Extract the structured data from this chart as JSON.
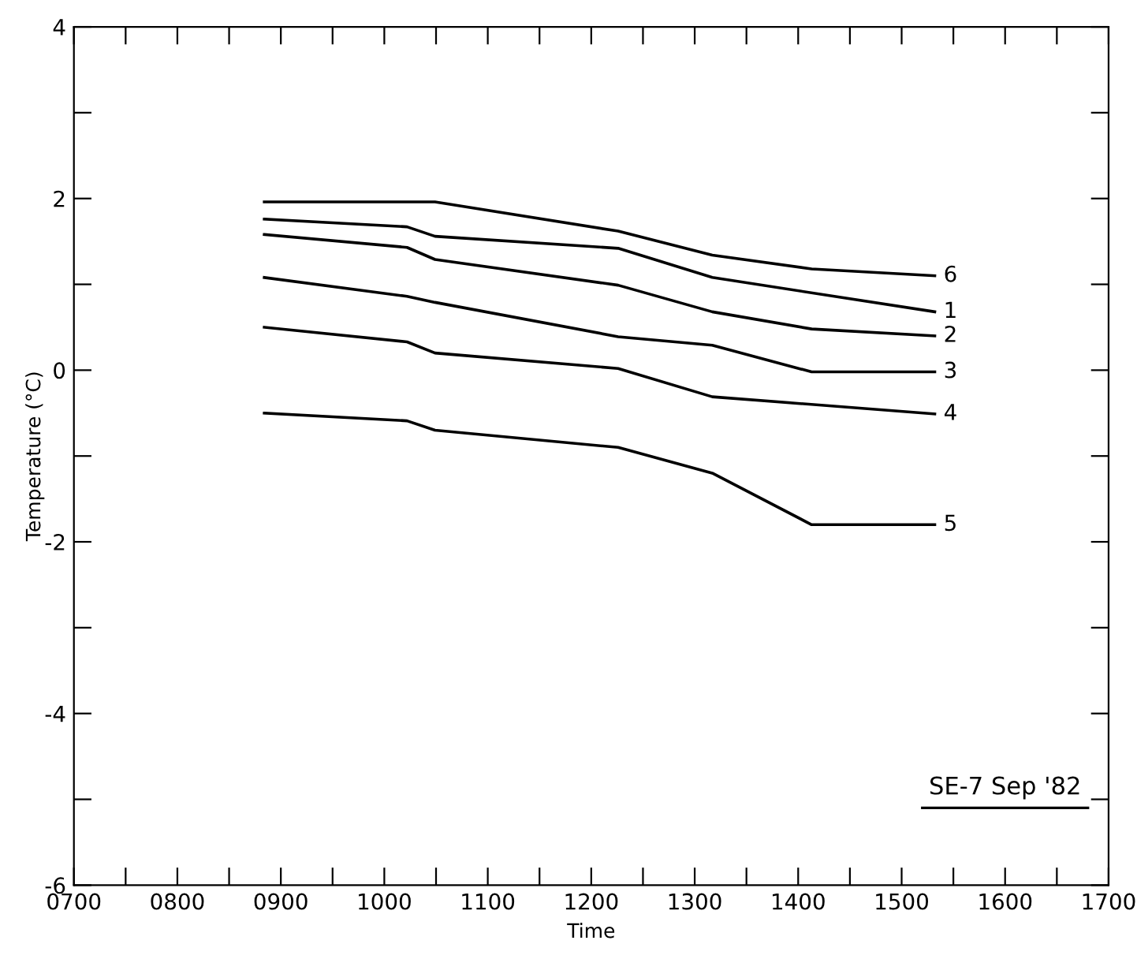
{
  "chart_data": {
    "type": "line",
    "xlabel": "Time",
    "ylabel": "Temperature (°C)",
    "annotations": [
      "SE-7 Sep '82"
    ],
    "xlim": [
      700,
      1700
    ],
    "ylim": [
      -6,
      4
    ],
    "xticks": [
      {
        "value": 700,
        "label": "0700"
      },
      {
        "value": 750,
        "label": null
      },
      {
        "value": 800,
        "label": "0800"
      },
      {
        "value": 850,
        "label": null
      },
      {
        "value": 900,
        "label": "0900"
      },
      {
        "value": 950,
        "label": null
      },
      1000,
      {
        "value": 1050,
        "label": null
      },
      1100,
      {
        "value": 1150,
        "label": null
      },
      1200,
      {
        "value": 1250,
        "label": null
      },
      1300,
      {
        "value": 1350,
        "label": null
      },
      1400,
      {
        "value": 1450,
        "label": null
      },
      1500,
      {
        "value": 1550,
        "label": null
      },
      1600,
      {
        "value": 1650,
        "label": null
      },
      1700
    ],
    "yticks": [
      -6,
      {
        "value": -5,
        "label": null
      },
      -4,
      {
        "value": -3,
        "label": null
      },
      -2,
      {
        "value": -1,
        "label": null
      },
      0,
      {
        "value": 1,
        "label": null
      },
      2,
      {
        "value": 3,
        "label": null
      },
      4
    ],
    "grid": false,
    "legend": false,
    "marker": "none",
    "line_style": "solid",
    "series": [
      {
        "name": "6",
        "color": "#000000",
        "x": [
          884,
          1049,
          1226,
          1317,
          1413,
          1532
        ],
        "values": [
          1.96,
          1.96,
          1.62,
          1.34,
          1.18,
          1.1
        ]
      },
      {
        "name": "1",
        "color": "#000000",
        "x": [
          884,
          1022,
          1049,
          1226,
          1317,
          1532
        ],
        "values": [
          1.76,
          1.67,
          1.56,
          1.42,
          1.08,
          0.68
        ]
      },
      {
        "name": "2",
        "color": "#000000",
        "x": [
          884,
          1022,
          1049,
          1226,
          1317,
          1413,
          1532
        ],
        "values": [
          1.58,
          1.43,
          1.29,
          0.99,
          0.68,
          0.48,
          0.4
        ]
      },
      {
        "name": "3",
        "color": "#000000",
        "x": [
          884,
          1022,
          1049,
          1226,
          1317,
          1413,
          1532
        ],
        "values": [
          1.08,
          0.86,
          0.79,
          0.39,
          0.29,
          -0.02,
          -0.02
        ]
      },
      {
        "name": "4",
        "color": "#000000",
        "x": [
          884,
          1022,
          1049,
          1226,
          1317,
          1532
        ],
        "values": [
          0.5,
          0.33,
          0.2,
          0.02,
          -0.31,
          -0.51
        ]
      },
      {
        "name": "5",
        "color": "#000000",
        "x": [
          884,
          1022,
          1049,
          1226,
          1317,
          1413,
          1532
        ],
        "values": [
          -0.5,
          -0.59,
          -0.7,
          -0.9,
          -1.2,
          -1.8,
          -1.8
        ]
      }
    ]
  }
}
